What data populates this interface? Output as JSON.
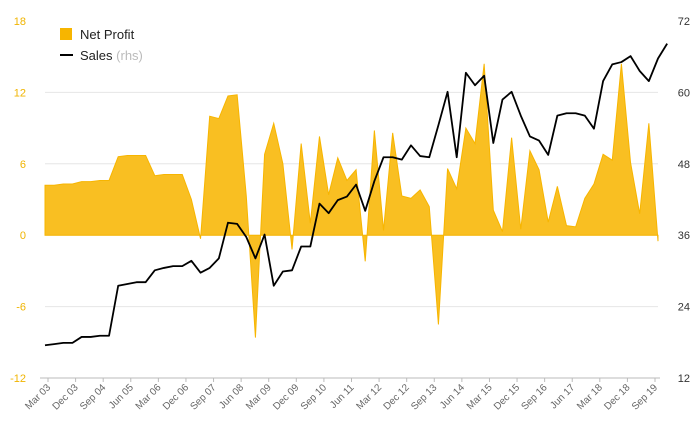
{
  "chart_data": {
    "type": "area+line",
    "legend": {
      "profit_label": "Net Profit",
      "sales_label": "Sales",
      "sales_suffix": "(rhs)",
      "placement": "top-left"
    },
    "colors": {
      "profit": "#f7b500",
      "profit_fill": "#f9bf22",
      "sales": "#000000",
      "left_axis": "#f0b400",
      "right_axis": "#333333",
      "grid": "#e6e6e6"
    },
    "y_left": {
      "min": -12,
      "max": 18,
      "ticks": [
        "-12",
        "-6",
        "0",
        "6",
        "12",
        "18"
      ]
    },
    "y_right": {
      "min": 12,
      "max": 72,
      "ticks": [
        "12",
        "24",
        "36",
        "48",
        "60",
        "72"
      ]
    },
    "x_ticks": [
      "Mar 03",
      "Dec 03",
      "Sep 04",
      "Jun 05",
      "Mar 06",
      "Dec 06",
      "Sep 07",
      "Jun 08",
      "Mar 09",
      "Dec 09",
      "Sep 10",
      "Jun 11",
      "Mar 12",
      "Dec 12",
      "Sep 13",
      "Jun 14",
      "Mar 15",
      "Dec 15",
      "Sep 16",
      "Jun 17",
      "Mar 18",
      "Dec 18",
      "Sep 19"
    ],
    "series": [
      {
        "name": "Net Profit",
        "axis": "left",
        "values": [
          4.2,
          4.2,
          4.3,
          4.3,
          4.5,
          4.5,
          4.6,
          4.6,
          6.6,
          6.7,
          6.7,
          6.7,
          5.0,
          5.1,
          5.1,
          5.1,
          3.0,
          -0.3,
          10.0,
          9.8,
          11.7,
          11.8,
          3.3,
          -8.6,
          6.8,
          9.4,
          6.0,
          -1.2,
          7.7,
          1.0,
          8.3,
          3.4,
          6.5,
          4.6,
          5.5,
          -2.2,
          8.8,
          0.4,
          8.6,
          3.3,
          3.1,
          3.8,
          2.4,
          -7.5,
          5.6,
          3.9,
          9.0,
          7.7,
          14.4,
          2.1,
          0.3,
          8.2,
          0.5,
          7.1,
          5.5,
          1.1,
          4.1,
          0.8,
          0.7,
          3.1,
          4.3,
          6.8,
          6.3,
          14.4,
          6.1,
          1.8,
          9.4,
          -0.5
        ]
      },
      {
        "name": "Sales",
        "axis": "right",
        "values": [
          17.5,
          17.7,
          17.9,
          17.9,
          18.9,
          18.9,
          19.1,
          19.1,
          27.5,
          27.8,
          28.1,
          28.1,
          30.1,
          30.5,
          30.8,
          30.8,
          31.7,
          29.7,
          30.5,
          32.1,
          38.1,
          37.9,
          35.7,
          32.1,
          36.1,
          27.5,
          29.9,
          30.1,
          34.1,
          34.1,
          41.3,
          39.7,
          41.9,
          42.5,
          44.5,
          40.1,
          45.1,
          49.1,
          49.1,
          48.7,
          51.1,
          49.3,
          49.1,
          54.5,
          60.1,
          49.1,
          63.3,
          61.2,
          62.8,
          51.5,
          58.8,
          60.1,
          56.1,
          52.6,
          51.9,
          49.5,
          56.1,
          56.5,
          56.5,
          56.1,
          53.9,
          61.9,
          64.7,
          65.1,
          66.1,
          63.6,
          61.9,
          65.7,
          68.2
        ]
      }
    ]
  }
}
